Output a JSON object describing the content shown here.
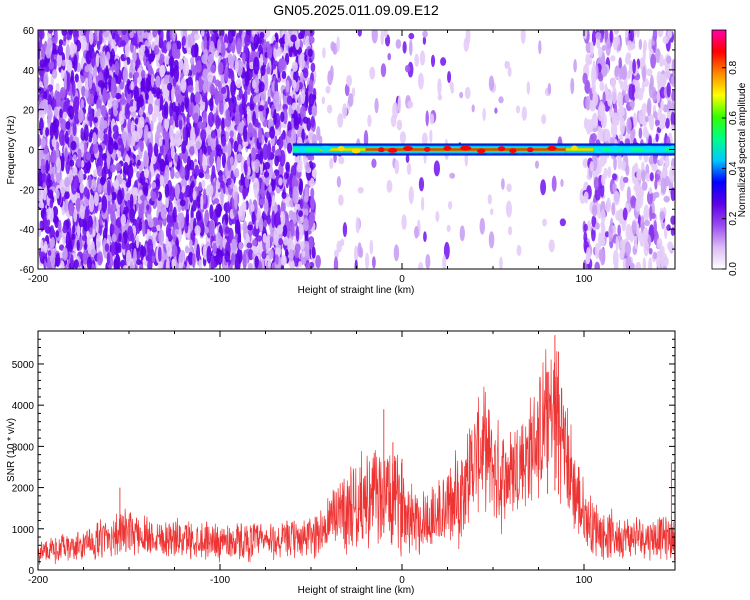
{
  "title": "GN05.2025.011.09.09.E12",
  "chart_data": [
    {
      "type": "heatmap",
      "xlabel": "Height of straight line (km)",
      "ylabel": "Frequency (Hz)",
      "xlim": [
        -200,
        150
      ],
      "ylim": [
        -60,
        60
      ],
      "xticks": [
        "-200",
        "-100",
        "0",
        "100"
      ],
      "xtick_values": [
        -200,
        -100,
        0,
        100
      ],
      "yticks": [
        "60",
        "40",
        "20",
        "0",
        "-20",
        "-40",
        "-60"
      ],
      "ytick_values": [
        60,
        40,
        20,
        0,
        -20,
        -40,
        -60
      ],
      "colorbar": {
        "label": "Normalized spectral amplitude",
        "range": [
          0,
          0.95
        ],
        "ticks": [
          "0.0",
          "0.2",
          "0.4",
          "0.6",
          "0.8"
        ],
        "tick_values": [
          0,
          0.2,
          0.4,
          0.6,
          0.8
        ],
        "colors": [
          "#ffffff",
          "#ddbbf6",
          "#9a4cf2",
          "#5e00e6",
          "#0000ff",
          "#00c8ff",
          "#00ff88",
          "#33ff00",
          "#ffff00",
          "#ff8800",
          "#ff0000",
          "#ff00aa"
        ]
      },
      "band": {
        "frequency_hz": 0,
        "x_start": -60,
        "x_end": 150,
        "segments": [
          {
            "x0": -60,
            "x1": -45,
            "amplitude": 0.35
          },
          {
            "x0": -45,
            "x1": -20,
            "amplitude": 0.6
          },
          {
            "x0": -20,
            "x1": 90,
            "amplitude": 0.85
          },
          {
            "x0": 90,
            "x1": 105,
            "amplitude": 0.55
          },
          {
            "x0": 105,
            "x1": 150,
            "amplitude": 0.45
          }
        ]
      },
      "noise_regions": [
        {
          "x0": -200,
          "x1": -48,
          "density": 0.9
        },
        {
          "x0": -48,
          "x1": 20,
          "density": 0.06
        },
        {
          "x0": 20,
          "x1": 100,
          "density": 0.03
        },
        {
          "x0": 100,
          "x1": 150,
          "density": 0.45
        }
      ]
    },
    {
      "type": "line",
      "xlabel": "Height of straight line (km)",
      "ylabel": "SNR (10 * v/v)",
      "xlim": [
        -200,
        150
      ],
      "ylim": [
        0,
        5800
      ],
      "xticks": [
        "-200",
        "-100",
        "0",
        "100"
      ],
      "xtick_values": [
        -200,
        -100,
        0,
        100
      ],
      "yticks": [
        "0",
        "1000",
        "2000",
        "3000",
        "4000",
        "5000"
      ],
      "ytick_values": [
        0,
        1000,
        2000,
        3000,
        4000,
        5000
      ],
      "series": [
        {
          "color": "#ee3333",
          "envelope_x": [
            -200,
            -190,
            -180,
            -170,
            -160,
            -155,
            -150,
            -140,
            -130,
            -120,
            -110,
            -100,
            -90,
            -80,
            -70,
            -60,
            -50,
            -40,
            -35,
            -30,
            -20,
            -10,
            -5,
            0,
            5,
            10,
            20,
            30,
            40,
            45,
            50,
            55,
            60,
            70,
            75,
            80,
            85,
            90,
            95,
            100,
            110,
            120,
            130,
            140,
            150
          ],
          "envelope_mean": [
            450,
            500,
            550,
            650,
            850,
            900,
            900,
            850,
            800,
            750,
            750,
            700,
            700,
            700,
            700,
            750,
            800,
            1100,
            1500,
            1500,
            1700,
            1800,
            1700,
            1600,
            1400,
            1200,
            1300,
            1700,
            2700,
            3000,
            2500,
            2200,
            2400,
            2800,
            3300,
            3700,
            3900,
            2800,
            1900,
            1300,
            900,
            800,
            800,
            800,
            800
          ],
          "envelope_spread": [
            300,
            300,
            350,
            400,
            500,
            550,
            500,
            500,
            450,
            450,
            450,
            450,
            450,
            450,
            450,
            450,
            500,
            700,
            900,
            1000,
            1100,
            1200,
            1100,
            1100,
            900,
            800,
            900,
            1100,
            1300,
            1300,
            1300,
            1200,
            1200,
            1300,
            1500,
            1600,
            1700,
            1400,
            1100,
            800,
            600,
            500,
            500,
            500,
            500
          ]
        }
      ]
    }
  ]
}
